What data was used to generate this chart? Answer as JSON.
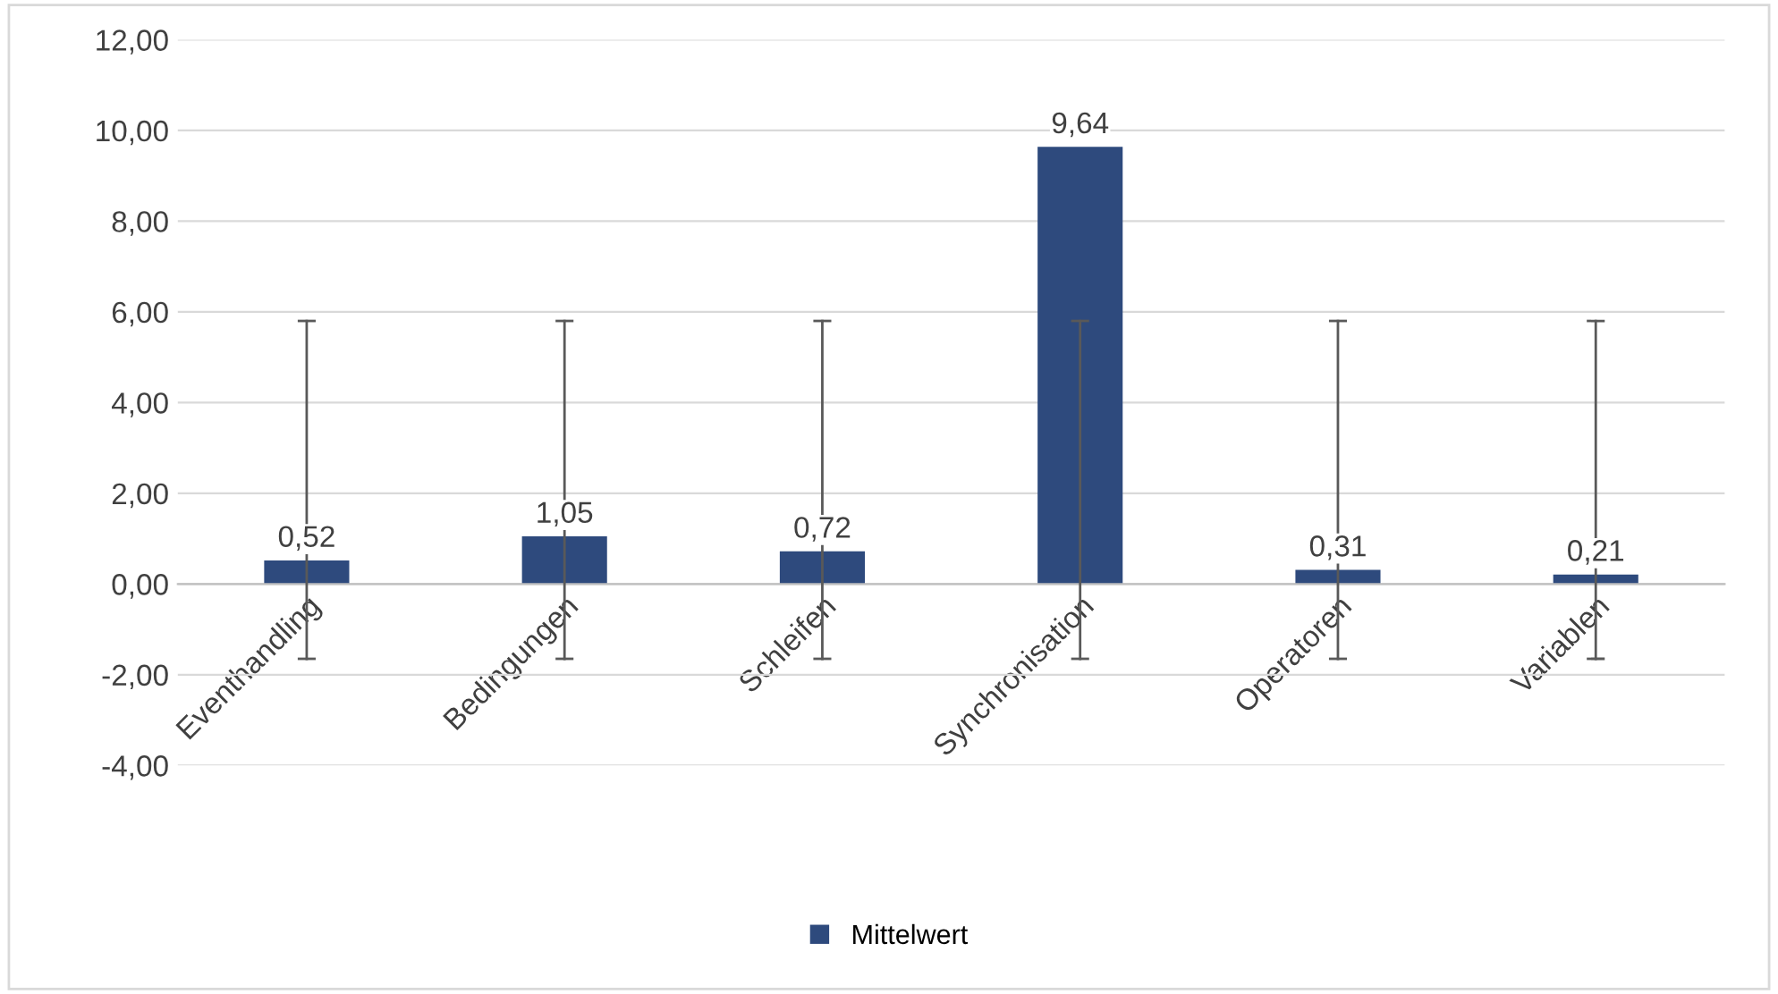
{
  "chart_data": {
    "type": "bar",
    "categories": [
      "Eventhandling",
      "Bedingungen",
      "Schleifen",
      "Synchronisation",
      "Operatoren",
      "Variablen"
    ],
    "series": [
      {
        "name": "Mittelwert",
        "color": "#2e4a7d",
        "values": [
          0.52,
          1.05,
          0.72,
          9.64,
          0.31,
          0.21
        ],
        "value_labels": [
          "0,52",
          "1,05",
          "0,72",
          "9,64",
          "0,31",
          "0,21"
        ],
        "errors": [
          [
            -1.65,
            5.8
          ],
          [
            -1.65,
            5.8
          ],
          [
            -1.65,
            5.8
          ],
          [
            -1.65,
            5.8
          ],
          [
            -1.65,
            5.8
          ],
          [
            -1.65,
            5.8
          ]
        ]
      }
    ],
    "ylim": [
      -4,
      12
    ],
    "yticks": [
      {
        "value": -4,
        "label": "-4,00"
      },
      {
        "value": -2,
        "label": "-2,00"
      },
      {
        "value": 0,
        "label": "0,00"
      },
      {
        "value": 2,
        "label": "2,00"
      },
      {
        "value": 4,
        "label": "4,00"
      },
      {
        "value": 6,
        "label": "6,00"
      },
      {
        "value": 8,
        "label": "8,00"
      },
      {
        "value": 10,
        "label": "10,00"
      },
      {
        "value": 12,
        "label": "12,00"
      }
    ],
    "grid": "y",
    "legend": "bottom"
  }
}
